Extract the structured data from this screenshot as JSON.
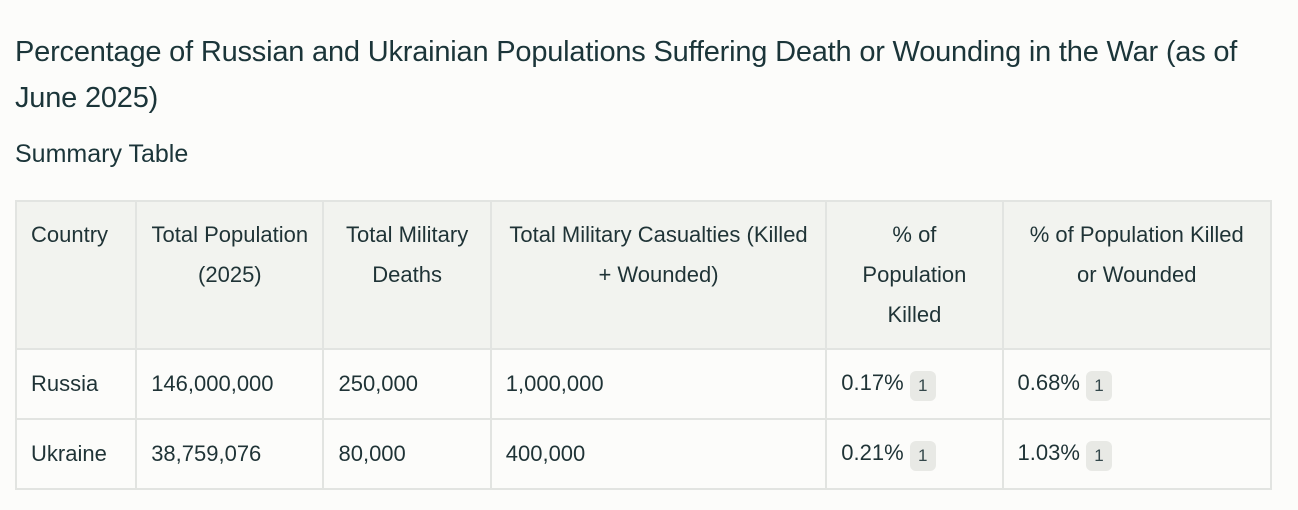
{
  "title": "Percentage of Russian and Ukrainian Populations Suffering Death or Wounding in the War (as of June 2025)",
  "subtitle": "Summary Table",
  "table": {
    "headers": [
      "Country",
      "Total Population (2025)",
      "Total Military Deaths",
      "Total Military Casualties (Killed + Wounded)",
      "% of Population Killed",
      "% of Population Killed or Wounded"
    ],
    "rows": [
      {
        "country": "Russia",
        "population": "146,000,000",
        "deaths": "250,000",
        "casualties": "1,000,000",
        "pct_killed": "0.17%",
        "pct_killed_citation": "1",
        "pct_killed_wounded": "0.68%",
        "pct_killed_wounded_citation": "1"
      },
      {
        "country": "Ukraine",
        "population": "38,759,076",
        "deaths": "80,000",
        "casualties": "400,000",
        "pct_killed": "0.21%",
        "pct_killed_citation": "1",
        "pct_killed_wounded": "1.03%",
        "pct_killed_wounded_citation": "1"
      }
    ]
  }
}
